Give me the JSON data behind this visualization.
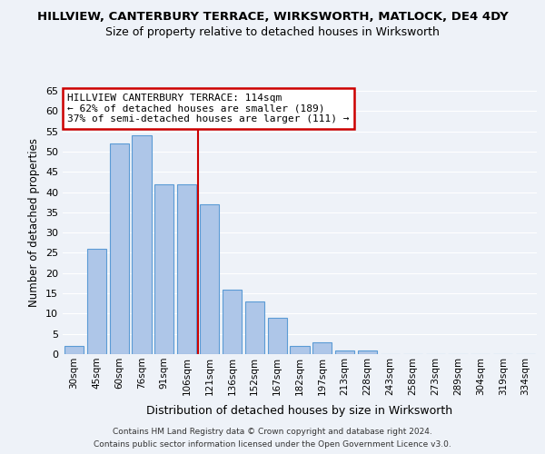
{
  "title": "HILLVIEW, CANTERBURY TERRACE, WIRKSWORTH, MATLOCK, DE4 4DY",
  "subtitle": "Size of property relative to detached houses in Wirksworth",
  "xlabel": "Distribution of detached houses by size in Wirksworth",
  "ylabel": "Number of detached properties",
  "bar_labels": [
    "30sqm",
    "45sqm",
    "60sqm",
    "76sqm",
    "91sqm",
    "106sqm",
    "121sqm",
    "136sqm",
    "152sqm",
    "167sqm",
    "182sqm",
    "197sqm",
    "213sqm",
    "228sqm",
    "243sqm",
    "258sqm",
    "273sqm",
    "289sqm",
    "304sqm",
    "319sqm",
    "334sqm"
  ],
  "bar_values": [
    2,
    26,
    52,
    54,
    42,
    42,
    37,
    16,
    13,
    9,
    2,
    3,
    1,
    1,
    0,
    0,
    0,
    0,
    0,
    0,
    0
  ],
  "bar_color": "#aec6e8",
  "bar_edge_color": "#5b9bd5",
  "ylim": [
    0,
    65
  ],
  "yticks": [
    0,
    5,
    10,
    15,
    20,
    25,
    30,
    35,
    40,
    45,
    50,
    55,
    60,
    65
  ],
  "redline_index": 6,
  "annotation_title": "HILLVIEW CANTERBURY TERRACE: 114sqm",
  "annotation_line1": "← 62% of detached houses are smaller (189)",
  "annotation_line2": "37% of semi-detached houses are larger (111) →",
  "footer1": "Contains HM Land Registry data © Crown copyright and database right 2024.",
  "footer2": "Contains public sector information licensed under the Open Government Licence v3.0.",
  "background_color": "#eef2f8",
  "grid_color": "#ffffff",
  "annotation_box_color": "#ffffff",
  "annotation_box_edge": "#cc0000"
}
